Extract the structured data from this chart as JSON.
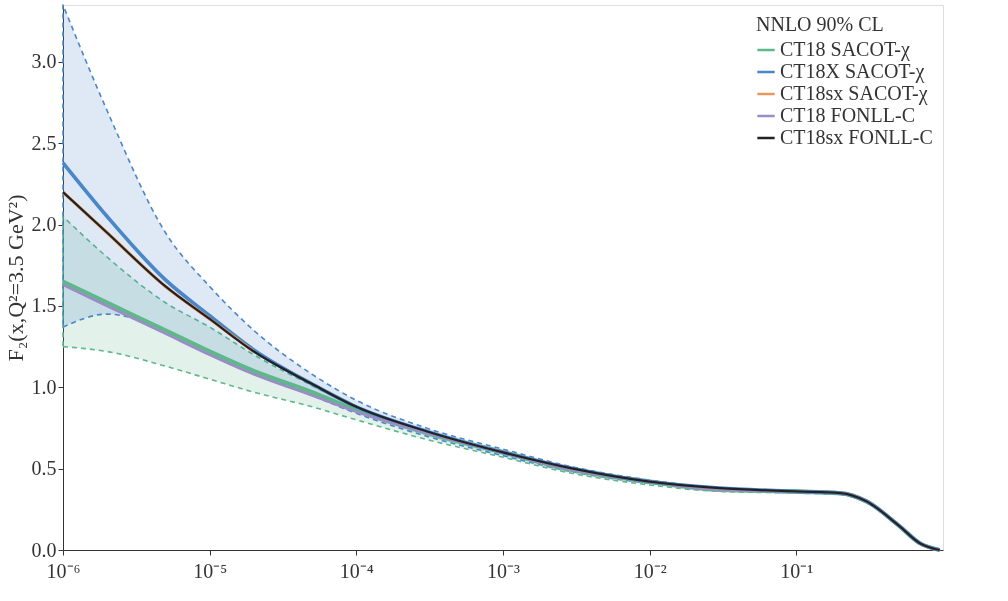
{
  "chart_data": {
    "type": "line",
    "ylabel": "F₂(x,Q²=3.5 GeV²)",
    "legend_title": "NNLO 90% CL",
    "x": [
      1e-06,
      2e-06,
      5e-06,
      1e-05,
      2e-05,
      5e-05,
      0.0001,
      0.0003,
      0.001,
      0.003,
      0.01,
      0.03,
      0.1,
      0.2,
      0.3,
      0.5,
      0.7,
      0.95
    ],
    "log": "x",
    "xlim": [
      1e-06,
      1
    ],
    "xticks": [
      {
        "value": 1e-06,
        "label": "10⁻⁶"
      },
      {
        "value": 1e-05,
        "label": "10⁻⁵"
      },
      {
        "value": 0.0001,
        "label": "10⁻⁴"
      },
      {
        "value": 0.001,
        "label": "10⁻³"
      },
      {
        "value": 0.01,
        "label": "10⁻²"
      },
      {
        "value": 0.1,
        "label": "10⁻¹"
      }
    ],
    "ylim": [
      0,
      3.35
    ],
    "yticks": [
      {
        "value": 0,
        "label": "0.0"
      },
      0.5,
      {
        "value": 1,
        "label": "1.0"
      },
      1.5,
      {
        "value": 2,
        "label": "2.0"
      },
      2.5,
      {
        "value": 3,
        "label": "3.0"
      }
    ],
    "grid": false,
    "legend": "top right",
    "series": [
      {
        "name": "CT18 SACOT-χ",
        "color": "#5fb88a",
        "values": [
          1.65,
          1.52,
          1.35,
          1.22,
          1.1,
          0.97,
          0.86,
          0.72,
          0.6,
          0.49,
          0.42,
          0.37,
          0.36,
          0.35,
          0.3,
          0.15,
          0.04,
          0.0
        ],
        "upper": [
          2.05,
          1.8,
          1.52,
          1.37,
          1.2,
          1.01,
          0.88,
          0.73,
          0.61,
          0.5,
          0.42,
          0.38,
          0.36,
          0.35,
          0.3,
          0.15,
          0.04,
          0.0
        ],
        "lower": [
          1.25,
          1.22,
          1.13,
          1.05,
          0.97,
          0.88,
          0.8,
          0.68,
          0.57,
          0.47,
          0.4,
          0.36,
          0.35,
          0.34,
          0.29,
          0.15,
          0.04,
          0.0
        ]
      },
      {
        "name": "CT18X SACOT-χ",
        "color": "#4a86c8",
        "values": [
          2.38,
          2.05,
          1.66,
          1.44,
          1.23,
          1.02,
          0.88,
          0.73,
          0.6,
          0.5,
          0.42,
          0.38,
          0.36,
          0.35,
          0.3,
          0.15,
          0.04,
          0.0
        ],
        "upper": [
          3.35,
          2.7,
          1.95,
          1.62,
          1.35,
          1.08,
          0.92,
          0.75,
          0.62,
          0.51,
          0.43,
          0.38,
          0.36,
          0.35,
          0.3,
          0.15,
          0.04,
          0.0
        ],
        "lower": [
          1.37,
          1.45,
          1.35,
          1.22,
          1.1,
          0.95,
          0.84,
          0.7,
          0.58,
          0.48,
          0.41,
          0.37,
          0.35,
          0.34,
          0.29,
          0.15,
          0.04,
          0.0
        ]
      },
      {
        "name": "CT18sx SACOT-χ",
        "color": "#e8995a",
        "values": [
          2.2,
          1.95,
          1.62,
          1.42,
          1.22,
          null,
          null,
          null,
          null,
          null,
          null,
          null,
          null,
          null,
          null,
          null,
          null,
          null
        ]
      },
      {
        "name": "CT18 FONLL-C",
        "color": "#9a8cc4",
        "values": [
          1.63,
          1.5,
          1.33,
          1.2,
          1.08,
          0.95,
          0.85,
          0.72,
          0.6,
          0.49,
          0.42,
          0.37,
          0.36,
          0.35,
          0.3,
          0.15,
          0.04,
          0.0
        ]
      },
      {
        "name": "CT18sx FONLL-C",
        "color": "#222222",
        "values": [
          2.2,
          1.95,
          1.62,
          1.42,
          1.22,
          1.02,
          0.88,
          0.73,
          0.6,
          0.5,
          0.42,
          0.38,
          0.36,
          0.35,
          0.3,
          0.15,
          0.04,
          0.0
        ]
      }
    ]
  }
}
